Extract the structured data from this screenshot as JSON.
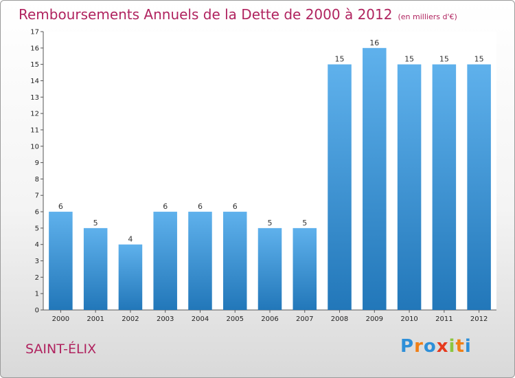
{
  "title": "Remboursements Annuels de la Dette de 2000 à 2012",
  "unit_note": "(en milliers d'€)",
  "commune": "SAINT-ÉLIX",
  "logo": {
    "text": "Proxiti",
    "letter_colors": [
      "#2e8fd8",
      "#f07f16",
      "#2e8fd8",
      "#e63a1e",
      "#8cc63f",
      "#f07f16",
      "#2e8fd8"
    ]
  },
  "colors": {
    "title": "#b0235f",
    "bar_top": "#5fb1ec",
    "bar_bottom": "#2277b9"
  },
  "chart_data": {
    "type": "bar",
    "categories": [
      "2000",
      "2001",
      "2002",
      "2003",
      "2004",
      "2005",
      "2006",
      "2007",
      "2008",
      "2009",
      "2010",
      "2011",
      "2012"
    ],
    "values": [
      6,
      5,
      4,
      6,
      6,
      6,
      5,
      5,
      15,
      16,
      15,
      15,
      15
    ],
    "title": "Remboursements Annuels de la Dette de 2000 à 2012",
    "xlabel": "",
    "ylabel": "",
    "ylim": [
      0,
      17
    ],
    "yticks": [
      "0",
      "1",
      "2",
      "3",
      "4",
      "5",
      "6",
      "7",
      "8",
      "9",
      "10",
      "11",
      "12",
      "13",
      "14",
      "15",
      "16",
      "17"
    ],
    "grid": false,
    "legend": "none"
  }
}
